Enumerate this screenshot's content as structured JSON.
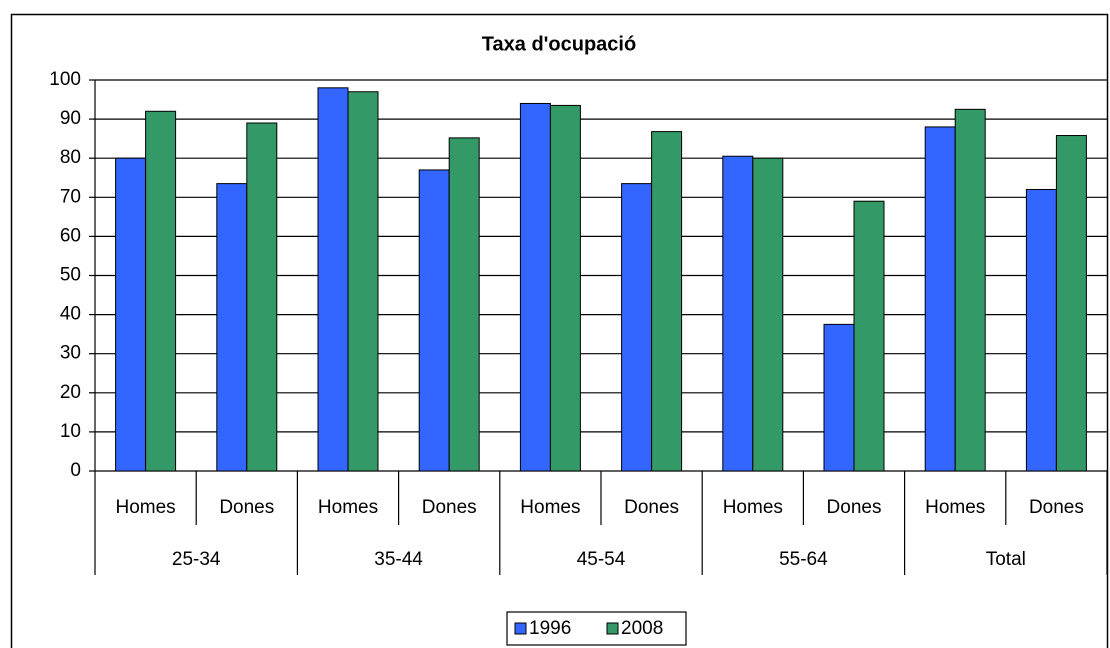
{
  "chart_data": {
    "type": "bar",
    "title": "Taxa d'ocupació",
    "categories": [
      "Homes",
      "Dones",
      "Homes",
      "Dones",
      "Homes",
      "Dones",
      "Homes",
      "Dones",
      "Homes",
      "Dones"
    ],
    "groups": [
      "25-34",
      "35-44",
      "45-54",
      "55-64",
      "Total"
    ],
    "series": [
      {
        "name": "1996",
        "color": "#3366ff",
        "values": [
          80,
          73.5,
          98,
          77,
          94,
          73.5,
          80.5,
          37.5,
          88,
          72
        ]
      },
      {
        "name": "2008",
        "color": "#339966",
        "values": [
          92,
          89,
          97,
          85.2,
          93.5,
          86.8,
          80,
          69,
          92.5,
          85.8
        ]
      }
    ],
    "ylim": [
      0,
      100
    ],
    "yticks": [
      0,
      10,
      20,
      30,
      40,
      50,
      60,
      70,
      80,
      90,
      100
    ],
    "grid": true,
    "legend": "bottom"
  }
}
